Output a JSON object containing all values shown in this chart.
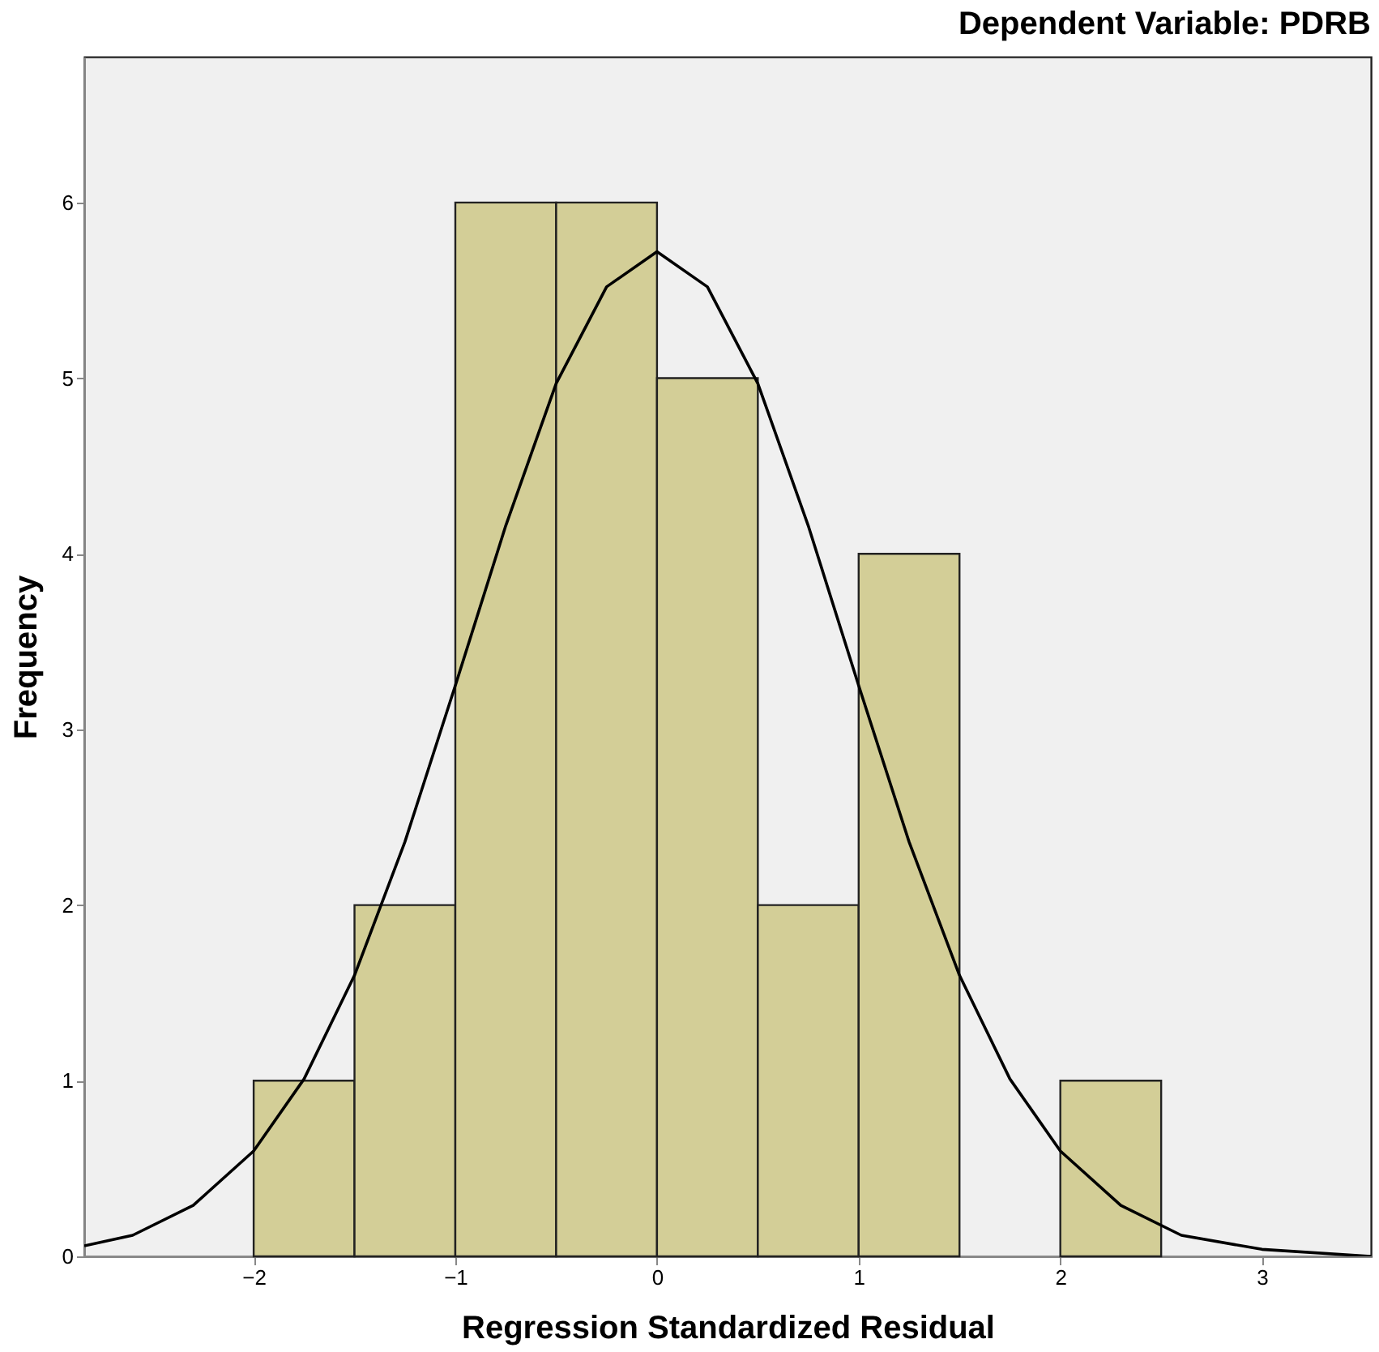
{
  "chart_data": {
    "type": "histogram",
    "title": "Dependent Variable: PDRB",
    "xlabel": "Regression Standardized Residual",
    "ylabel": "Frequency",
    "bins": [
      -2,
      -1.5,
      -1,
      -0.5,
      0,
      0.5,
      1,
      1.5,
      2,
      2.5
    ],
    "values": [
      1,
      2,
      6,
      6,
      5,
      2,
      4,
      0,
      1
    ],
    "color": "#d3ce97",
    "series": [
      {
        "type": "line",
        "color": "#000000",
        "x": [
          -2.84,
          -2.6,
          -2.3,
          -2.0,
          -1.75,
          -1.5,
          -1.25,
          -1.0,
          -0.75,
          -0.5,
          -0.25,
          0,
          0.25,
          0.5,
          0.75,
          1.0,
          1.25,
          1.5,
          1.75,
          2.0,
          2.3,
          2.6,
          3.0,
          3.54
        ],
        "values": [
          0.06,
          0.12,
          0.29,
          0.6,
          1.01,
          1.6,
          2.36,
          3.25,
          4.16,
          4.97,
          5.52,
          5.72,
          5.52,
          4.97,
          4.16,
          3.25,
          2.36,
          1.6,
          1.01,
          0.6,
          0.29,
          0.12,
          0.04,
          0.0
        ]
      }
    ],
    "xlim": [
      -2.84,
      3.54
    ],
    "xticks": [
      -2,
      -1,
      0,
      1,
      2,
      3
    ],
    "ylim": [
      0,
      6.83
    ],
    "yticks": [
      0,
      1,
      2,
      3,
      4,
      5,
      6
    ],
    "grid": false
  }
}
